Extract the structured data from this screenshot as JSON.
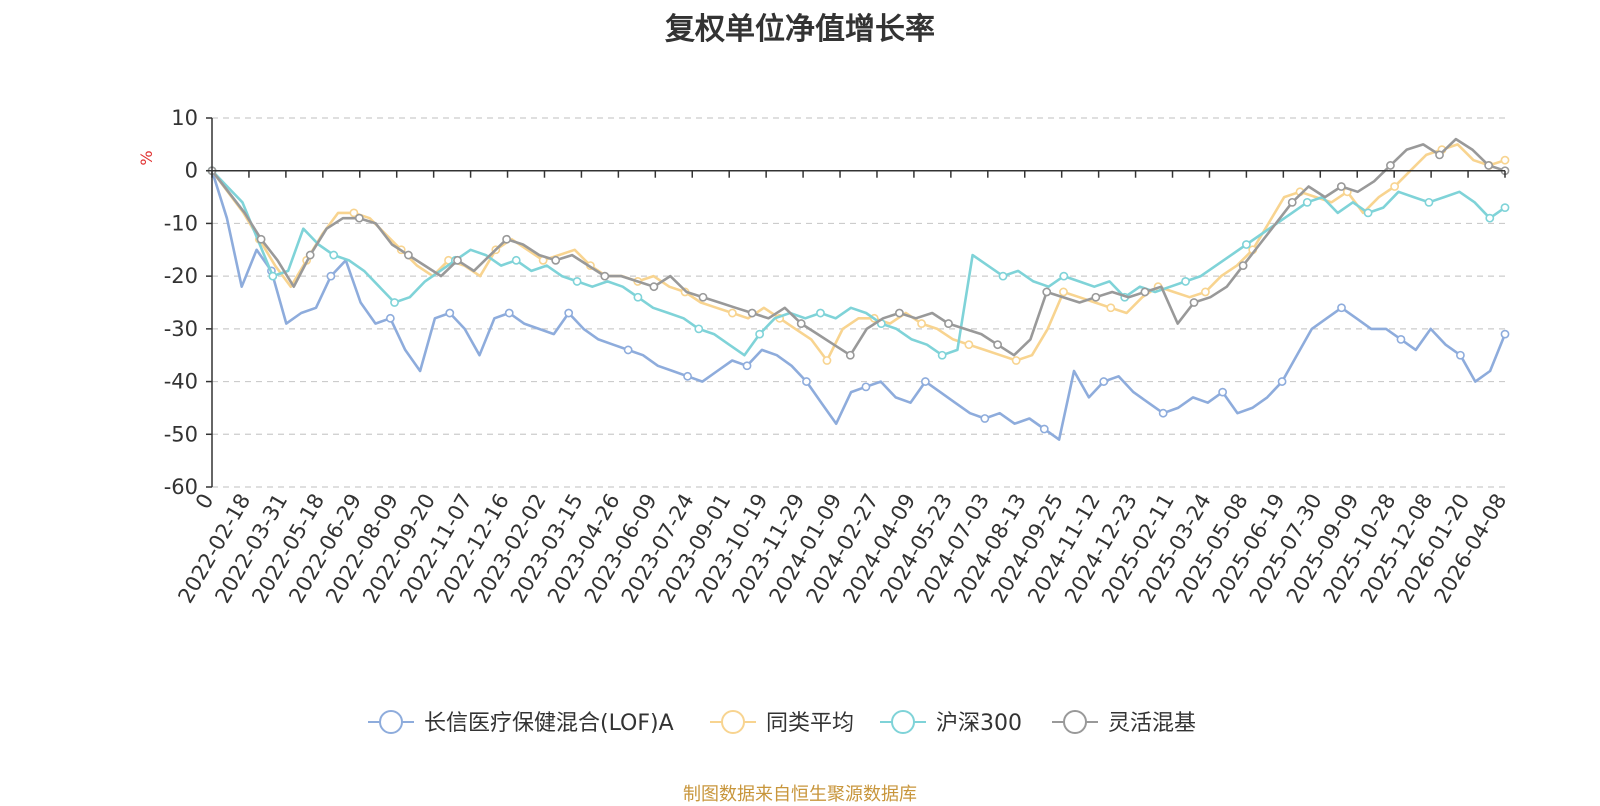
{
  "chart_data": {
    "type": "line",
    "title": "复权单位净值增长率",
    "ylabel": "%",
    "xlabel": "",
    "ylim": [
      -60,
      10
    ],
    "y_ticks": [
      10,
      0,
      -10,
      -20,
      -30,
      -40,
      -50,
      -60
    ],
    "x_tick_labels": [
      "0",
      "2022-02-18",
      "2022-03-31",
      "2022-05-18",
      "2022-06-29",
      "2022-08-09",
      "2022-09-20",
      "2022-11-07",
      "2022-12-16",
      "2023-02-02",
      "2023-03-15",
      "2023-04-26",
      "2023-06-09",
      "2023-07-24",
      "2023-09-01",
      "2023-10-19",
      "2023-11-29",
      "2024-01-09",
      "2024-02-27",
      "2024-04-09",
      "2024-05-23",
      "2024-07-03",
      "2024-08-13",
      "2024-09-25",
      "2024-11-12",
      "2024-12-23",
      "2025-02-11",
      "2025-03-24",
      "2025-05-08",
      "2025-06-19",
      "2025-07-30",
      "2025-09-09",
      "2025-10-28",
      "2025-12-08",
      "2026-01-20",
      "2026-04-08"
    ],
    "grid": true,
    "legend_position": "bottom",
    "series": [
      {
        "name": "长信医疗保健混合(LOF)A",
        "color": "#8eacdc",
        "values": [
          0,
          -9,
          -22,
          -15,
          -19,
          -29,
          -27,
          -26,
          -20,
          -17,
          -25,
          -29,
          -28,
          -34,
          -38,
          -28,
          -27,
          -30,
          -35,
          -28,
          -27,
          -29,
          -30,
          -31,
          -27,
          -30,
          -32,
          -33,
          -34,
          -35,
          -37,
          -38,
          -39,
          -40,
          -38,
          -36,
          -37,
          -34,
          -35,
          -37,
          -40,
          -44,
          -48,
          -42,
          -41,
          -40,
          -43,
          -44,
          -40,
          -42,
          -44,
          -46,
          -47,
          -46,
          -48,
          -47,
          -49,
          -51,
          -38,
          -43,
          -40,
          -39,
          -42,
          -44,
          -46,
          -45,
          -43,
          -44,
          -42,
          -46,
          -45,
          -43,
          -40,
          -35,
          -30,
          -28,
          -26,
          -28,
          -30,
          -30,
          -32,
          -34,
          -30,
          -33,
          -35,
          -40,
          -38,
          -31
        ]
      },
      {
        "name": "同类平均",
        "color": "#f8d490",
        "values": [
          0,
          -4,
          -8,
          -13,
          -18,
          -22,
          -17,
          -12,
          -8,
          -8,
          -9,
          -12,
          -15,
          -18,
          -20,
          -17,
          -18,
          -20,
          -15,
          -13,
          -15,
          -17,
          -16,
          -15,
          -18,
          -20,
          -20,
          -21,
          -20,
          -22,
          -23,
          -25,
          -26,
          -27,
          -28,
          -26,
          -28,
          -30,
          -32,
          -36,
          -30,
          -28,
          -28,
          -29,
          -27,
          -29,
          -30,
          -32,
          -33,
          -34,
          -35,
          -36,
          -35,
          -30,
          -23,
          -24,
          -25,
          -26,
          -27,
          -24,
          -22,
          -23,
          -24,
          -23,
          -20,
          -18,
          -15,
          -10,
          -5,
          -4,
          -5,
          -6,
          -4,
          -8,
          -5,
          -3,
          0,
          3,
          4,
          5,
          2,
          1,
          2
        ]
      },
      {
        "name": "沪深300",
        "color": "#7fd3d8",
        "values": [
          0,
          -3,
          -6,
          -13,
          -20,
          -19,
          -11,
          -14,
          -16,
          -17,
          -19,
          -22,
          -25,
          -24,
          -21,
          -19,
          -17,
          -15,
          -16,
          -18,
          -17,
          -19,
          -18,
          -20,
          -21,
          -22,
          -21,
          -22,
          -24,
          -26,
          -27,
          -28,
          -30,
          -31,
          -33,
          -35,
          -31,
          -28,
          -27,
          -28,
          -27,
          -28,
          -26,
          -27,
          -29,
          -30,
          -32,
          -33,
          -35,
          -34,
          -16,
          -18,
          -20,
          -19,
          -21,
          -22,
          -20,
          -21,
          -22,
          -21,
          -24,
          -22,
          -23,
          -22,
          -21,
          -20,
          -18,
          -16,
          -14,
          -12,
          -10,
          -8,
          -6,
          -5,
          -8,
          -6,
          -8,
          -7,
          -4,
          -5,
          -6,
          -5,
          -4,
          -6,
          -9,
          -7
        ]
      },
      {
        "name": "灵活混基",
        "color": "#999999",
        "values": [
          0,
          -4,
          -8,
          -13,
          -17,
          -22,
          -16,
          -11,
          -9,
          -9,
          -10,
          -14,
          -16,
          -18,
          -20,
          -17,
          -19,
          -16,
          -13,
          -14,
          -16,
          -17,
          -16,
          -18,
          -20,
          -20,
          -21,
          -22,
          -20,
          -23,
          -24,
          -25,
          -26,
          -27,
          -28,
          -26,
          -29,
          -31,
          -33,
          -35,
          -30,
          -28,
          -27,
          -28,
          -27,
          -29,
          -30,
          -31,
          -33,
          -35,
          -32,
          -23,
          -24,
          -25,
          -24,
          -23,
          -24,
          -23,
          -22,
          -29,
          -25,
          -24,
          -22,
          -18,
          -14,
          -10,
          -6,
          -3,
          -5,
          -3,
          -4,
          -2,
          1,
          4,
          5,
          3,
          6,
          4,
          1,
          0
        ]
      }
    ]
  },
  "source_note": "制图数据来自恒生聚源数据库"
}
